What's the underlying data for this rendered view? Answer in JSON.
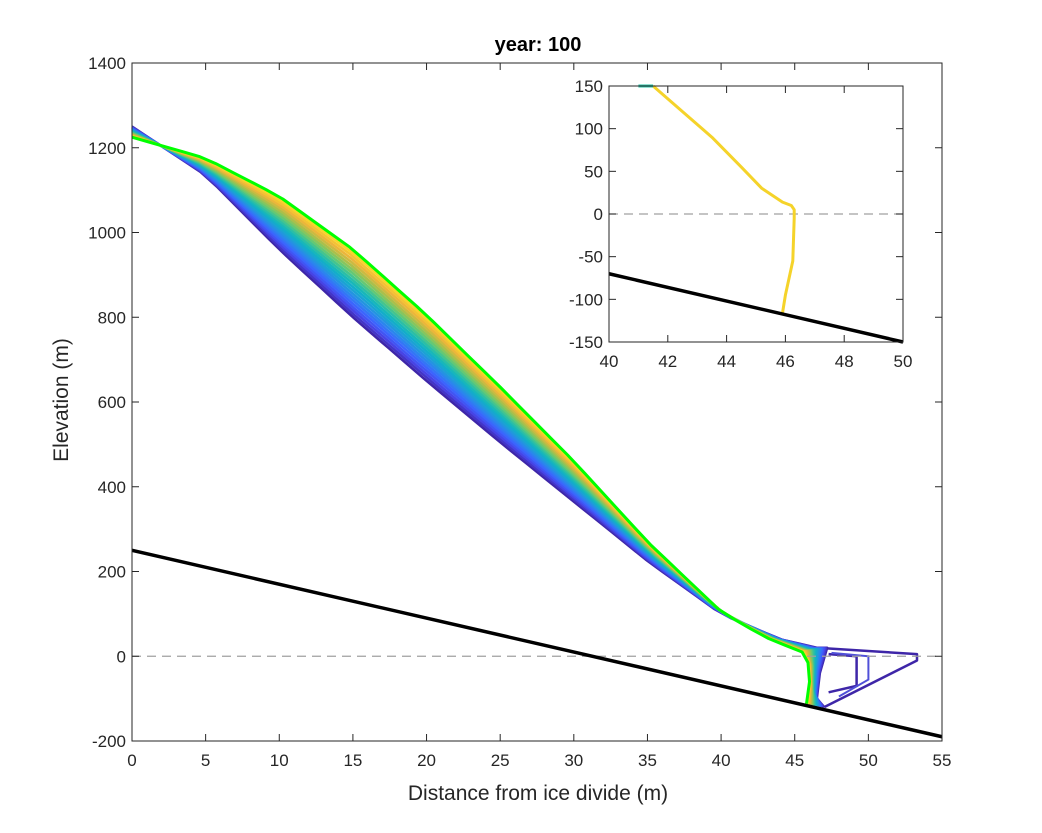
{
  "chart_data": [
    {
      "type": "line",
      "title": "year: 100",
      "xlabel": "Distance from ice divide (m)",
      "ylabel": "Elevation (m)",
      "xlim": [
        0,
        55
      ],
      "ylim": [
        -200,
        1400
      ],
      "xticks": [
        "0",
        "5",
        "10",
        "15",
        "20",
        "25",
        "30",
        "35",
        "40",
        "45",
        "50",
        "55"
      ],
      "yticks": [
        "-200",
        "0",
        "200",
        "400",
        "600",
        "800",
        "1000",
        "1200",
        "1400"
      ],
      "grid": false,
      "sea_level": 0,
      "bed": {
        "x": [
          0,
          55
        ],
        "y": [
          250,
          -190
        ],
        "color": "#000000"
      },
      "profile_count": 21,
      "first_profile": {
        "color": "#3e26a8",
        "surface": {
          "x": [
            0,
            5,
            10,
            15,
            20,
            25,
            30,
            35,
            40,
            44,
            46.5
          ],
          "y": [
            1250,
            1135,
            960,
            800,
            650,
            505,
            365,
            225,
            100,
            40,
            20
          ]
        },
        "shelf": {
          "x": [
            46.5,
            53.3,
            53.3,
            47
          ],
          "y": [
            20,
            5,
            -10,
            -120
          ]
        },
        "front": {
          "x": [
            47,
            46.5,
            46.7,
            47.2
          ],
          "y": [
            -120,
            -100,
            -40,
            20
          ]
        }
      },
      "last_profile": {
        "color": "#00ff00",
        "surface": {
          "x": [
            0,
            5,
            10,
            15,
            20,
            25,
            30,
            35,
            40,
            43,
            45.5
          ],
          "y": [
            1225,
            1175,
            1085,
            960,
            805,
            635,
            460,
            270,
            105,
            45,
            10
          ]
        },
        "front": {
          "x": [
            45.5,
            45.9,
            46.0,
            45.8
          ],
          "y": [
            10,
            -15,
            -60,
            -112
          ]
        }
      }
    },
    {
      "type": "line",
      "xlim": [
        40,
        50
      ],
      "ylim": [
        -150,
        150
      ],
      "xticks": [
        "40",
        "42",
        "44",
        "46",
        "48",
        "50"
      ],
      "yticks": [
        "-150",
        "-100",
        "-50",
        "0",
        "50",
        "100",
        "150"
      ],
      "sea_level": 0,
      "bed": {
        "x": [
          40,
          50
        ],
        "y": [
          -70,
          -150
        ],
        "color": "#000000"
      },
      "series": [
        {
          "color": "#f5d32a",
          "x": [
            41.5,
            42.5,
            43.5,
            44.5,
            45.2,
            45.9,
            46.2,
            46.3,
            46.3,
            46.25,
            46.0,
            45.9
          ],
          "y": [
            150,
            120,
            90,
            55,
            30,
            14,
            10,
            5,
            -5,
            -55,
            -95,
            -116
          ]
        },
        {
          "color": "#27c3a6",
          "x": [
            41.0,
            41.5
          ],
          "y": [
            150,
            150
          ]
        }
      ]
    }
  ]
}
